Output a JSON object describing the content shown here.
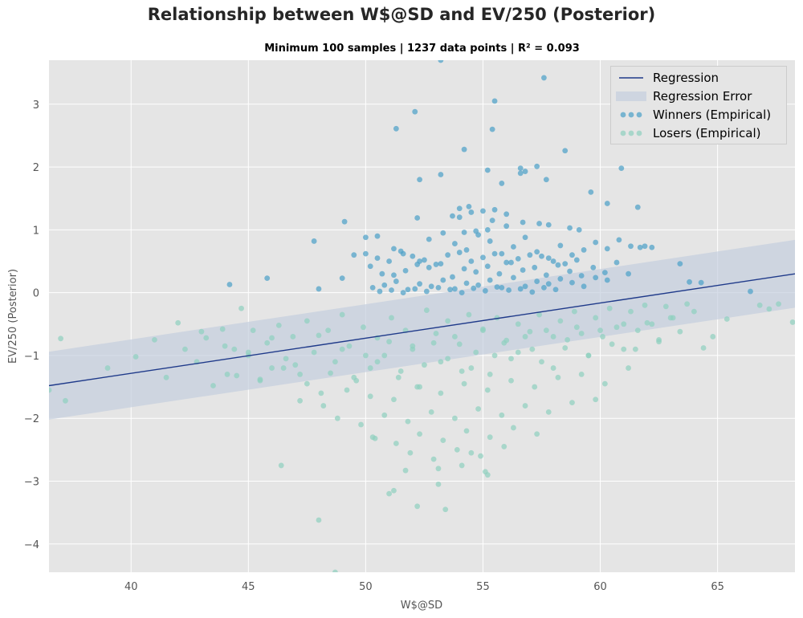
{
  "title": "Relationship between W$@SD and EV/250 (Posterior)",
  "subtitle": "Minimum 100 samples | 1237 data points | R²  =  0.093",
  "colors": {
    "background": "#e5e5e5",
    "grid": "#ffffff",
    "regression": "#1f3a8a",
    "band": "#c4cede",
    "winners": "#4a9fc7",
    "losers": "#8fd0bf"
  },
  "chart_data": {
    "type": "scatter",
    "xlabel": "W$@SD",
    "ylabel": "EV/250 (Posterior)",
    "xlim": [
      36.5,
      68.3
    ],
    "ylim": [
      -4.45,
      3.7
    ],
    "xticks": [
      40,
      45,
      50,
      55,
      60,
      65
    ],
    "yticks": [
      -4,
      -3,
      -2,
      -1,
      0,
      1,
      2,
      3
    ],
    "grid": true,
    "legend_position": "top-right",
    "legend": [
      "Regression",
      "Regression Error",
      "Winners (Empirical)",
      "Losers (Empirical)"
    ],
    "regression": {
      "x": [
        36.5,
        68.3
      ],
      "y": [
        -1.48,
        0.3
      ]
    },
    "regression_error": {
      "x": [
        36.5,
        68.3
      ],
      "lower": [
        -2.02,
        -0.24
      ],
      "upper": [
        -0.94,
        0.84
      ]
    },
    "series": [
      {
        "name": "Winners (Empirical)",
        "x": [
          53.2,
          57.6,
          55.5,
          52.1,
          51.3,
          55.4,
          58.5,
          54.2,
          57.3,
          56.6,
          56.8,
          55.2,
          52.3,
          53.2,
          59.6,
          57.7,
          56.6,
          55.8,
          60.9,
          54.4,
          49.1,
          52.2,
          53.7,
          54.0,
          55.4,
          56.0,
          56.7,
          57.4,
          57.8,
          58.7,
          59.1,
          60.3,
          61.6,
          62.2,
          47.8,
          50.0,
          50.5,
          51.2,
          51.6,
          52.3,
          52.7,
          53.3,
          53.8,
          54.3,
          54.8,
          55.3,
          55.8,
          56.3,
          56.8,
          57.3,
          57.8,
          58.3,
          58.8,
          59.3,
          59.8,
          60.3,
          60.8,
          61.3,
          50.2,
          50.7,
          51.2,
          51.7,
          52.2,
          52.7,
          53.2,
          53.7,
          54.2,
          54.7,
          55.2,
          55.7,
          56.2,
          56.7,
          57.2,
          57.7,
          58.2,
          58.7,
          59.2,
          59.7,
          60.2,
          60.7,
          61.2,
          61.7,
          50.3,
          50.8,
          51.3,
          51.8,
          52.3,
          52.8,
          53.3,
          53.8,
          54.3,
          54.8,
          55.3,
          55.8,
          56.3,
          56.8,
          57.3,
          57.8,
          58.3,
          58.8,
          59.3,
          59.8,
          60.3,
          49.5,
          50.0,
          50.5,
          51.0,
          51.5,
          52.0,
          52.5,
          53.0,
          53.5,
          54.0,
          54.5,
          55.0,
          55.5,
          56.0,
          56.5,
          57.0,
          57.5,
          58.0,
          58.5,
          59.0,
          50.6,
          51.1,
          51.6,
          52.1,
          52.6,
          53.1,
          53.6,
          54.1,
          54.6,
          55.1,
          55.6,
          56.1,
          56.6,
          57.1,
          57.6,
          58.1,
          54.0,
          54.5,
          55.0,
          55.5,
          56.0,
          54.2,
          54.7,
          55.2,
          44.2,
          45.8,
          48.0,
          49.0,
          63.4,
          63.8,
          64.3,
          66.4,
          61.9
        ],
        "y": [
          3.7,
          3.42,
          3.05,
          2.88,
          2.61,
          2.6,
          2.26,
          2.28,
          2.01,
          1.98,
          1.93,
          1.95,
          1.8,
          1.88,
          1.6,
          1.8,
          1.9,
          1.74,
          1.98,
          1.37,
          1.13,
          1.19,
          1.22,
          1.2,
          1.15,
          1.06,
          1.12,
          1.1,
          1.08,
          1.03,
          1.0,
          1.42,
          1.36,
          0.72,
          0.82,
          0.88,
          0.9,
          0.7,
          0.62,
          0.5,
          0.85,
          0.95,
          0.78,
          0.68,
          0.92,
          0.82,
          0.62,
          0.73,
          0.88,
          0.65,
          0.55,
          0.75,
          0.6,
          0.68,
          0.8,
          0.7,
          0.84,
          0.74,
          0.42,
          0.3,
          0.28,
          0.35,
          0.45,
          0.4,
          0.46,
          0.25,
          0.38,
          0.33,
          0.42,
          0.3,
          0.48,
          0.36,
          0.4,
          0.28,
          0.44,
          0.34,
          0.27,
          0.4,
          0.32,
          0.48,
          0.3,
          0.72,
          0.08,
          0.12,
          0.18,
          0.05,
          0.14,
          0.1,
          0.2,
          0.06,
          0.15,
          0.12,
          0.2,
          0.08,
          0.24,
          0.1,
          0.18,
          0.14,
          0.22,
          0.16,
          0.1,
          0.24,
          0.2,
          0.6,
          0.62,
          0.55,
          0.5,
          0.66,
          0.58,
          0.52,
          0.45,
          0.6,
          0.64,
          0.5,
          0.56,
          0.62,
          0.48,
          0.54,
          0.6,
          0.58,
          0.5,
          0.46,
          0.52,
          0.02,
          0.04,
          0.0,
          0.06,
          0.02,
          0.08,
          0.05,
          0.0,
          0.07,
          0.03,
          0.09,
          0.04,
          0.06,
          0.01,
          0.08,
          0.05,
          1.34,
          1.28,
          1.3,
          1.32,
          1.25,
          0.96,
          0.98,
          1.0,
          0.13,
          0.23,
          0.06,
          0.23,
          0.46,
          0.17,
          0.16,
          0.02,
          0.74
        ]
      },
      {
        "name": "Losers (Empirical)",
        "x": [
          36.5,
          37.0,
          37.2,
          39.0,
          40.2,
          41.0,
          41.5,
          42.0,
          42.3,
          42.8,
          43.2,
          43.5,
          43.9,
          44.1,
          44.4,
          44.7,
          45.0,
          45.2,
          45.5,
          45.8,
          46.0,
          46.3,
          46.6,
          46.9,
          47.2,
          47.5,
          47.8,
          48.1,
          48.4,
          48.7,
          49.0,
          49.3,
          49.6,
          49.9,
          50.2,
          50.5,
          50.8,
          51.1,
          51.4,
          51.7,
          52.0,
          52.3,
          52.6,
          52.9,
          53.2,
          53.5,
          53.8,
          54.1,
          54.4,
          54.7,
          55.0,
          55.3,
          55.6,
          55.9,
          56.2,
          56.5,
          56.8,
          57.1,
          57.4,
          57.7,
          58.0,
          58.3,
          58.6,
          58.9,
          59.2,
          59.5,
          59.8,
          60.1,
          60.4,
          60.7,
          61.0,
          61.3,
          61.6,
          61.9,
          62.2,
          62.5,
          62.8,
          63.1,
          63.4,
          63.7,
          64.0,
          64.4,
          64.8,
          65.4,
          66.8,
          67.2,
          67.6,
          68.2,
          43.0,
          44.0,
          45.0,
          46.0,
          47.0,
          48.0,
          49.0,
          50.0,
          51.0,
          52.0,
          53.0,
          54.0,
          55.0,
          56.0,
          57.0,
          58.0,
          59.0,
          60.0,
          61.0,
          62.0,
          63.0,
          44.5,
          45.5,
          46.5,
          47.5,
          48.5,
          49.5,
          50.5,
          51.5,
          52.5,
          53.5,
          54.5,
          55.5,
          56.5,
          57.5,
          58.5,
          59.5,
          60.5,
          61.5,
          62.5,
          47.2,
          48.2,
          49.2,
          50.2,
          51.2,
          52.2,
          53.2,
          54.2,
          55.2,
          56.2,
          57.2,
          58.2,
          59.2,
          60.2,
          61.2,
          48.8,
          49.8,
          50.8,
          51.8,
          52.8,
          53.8,
          54.8,
          55.8,
          56.8,
          57.8,
          58.8,
          59.8,
          50.3,
          51.3,
          52.3,
          53.3,
          54.3,
          55.3,
          56.3,
          57.3,
          51.9,
          52.9,
          53.9,
          54.9,
          55.9,
          53.1,
          54.1,
          55.1,
          51.0,
          52.2,
          53.1,
          53.4,
          46.4,
          48.0,
          48.7,
          51.7,
          54.5,
          55.2,
          50.4,
          51.2
        ],
        "y": [
          -1.55,
          -0.73,
          -1.72,
          -1.2,
          -1.02,
          -0.75,
          -1.35,
          -0.48,
          -0.9,
          -1.1,
          -0.72,
          -1.48,
          -0.58,
          -1.3,
          -0.9,
          -0.25,
          -1.0,
          -0.6,
          -1.4,
          -0.8,
          -1.2,
          -0.52,
          -1.05,
          -0.7,
          -1.3,
          -0.45,
          -0.95,
          -1.6,
          -0.6,
          -1.1,
          -0.35,
          -0.85,
          -1.4,
          -0.55,
          -1.2,
          -0.72,
          -1.0,
          -0.4,
          -1.35,
          -0.6,
          -0.9,
          -1.5,
          -0.28,
          -0.8,
          -1.1,
          -0.45,
          -0.7,
          -1.25,
          -0.35,
          -0.95,
          -0.6,
          -1.3,
          -0.4,
          -0.8,
          -1.05,
          -0.5,
          -0.7,
          -0.9,
          -0.35,
          -0.6,
          -1.2,
          -0.45,
          -0.75,
          -0.3,
          -0.65,
          -1.0,
          -0.4,
          -0.7,
          -0.25,
          -0.55,
          -0.9,
          -0.3,
          -0.6,
          -0.2,
          -0.5,
          -0.75,
          -0.22,
          -0.4,
          -0.62,
          -0.18,
          -0.3,
          -0.88,
          -0.7,
          -0.42,
          -0.2,
          -0.26,
          -0.18,
          -0.47,
          -0.62,
          -0.85,
          -0.95,
          -0.72,
          -1.15,
          -0.68,
          -0.9,
          -1.0,
          -0.78,
          -0.85,
          -0.65,
          -0.82,
          -0.58,
          -0.76,
          -0.62,
          -0.7,
          -0.55,
          -0.6,
          -0.5,
          -0.48,
          -0.4,
          -1.32,
          -1.38,
          -1.2,
          -1.45,
          -1.28,
          -1.35,
          -1.1,
          -1.25,
          -1.15,
          -1.05,
          -1.2,
          -1.0,
          -0.95,
          -1.1,
          -0.88,
          -1.0,
          -0.82,
          -0.9,
          -0.78,
          -1.72,
          -1.8,
          -1.55,
          -1.65,
          -1.7,
          -1.5,
          -1.6,
          -1.45,
          -1.55,
          -1.4,
          -1.5,
          -1.35,
          -1.3,
          -1.45,
          -1.2,
          -2.0,
          -2.1,
          -1.95,
          -2.05,
          -1.9,
          -2.0,
          -1.85,
          -1.95,
          -1.8,
          -1.9,
          -1.75,
          -1.7,
          -2.3,
          -2.4,
          -2.25,
          -2.35,
          -2.2,
          -2.3,
          -2.15,
          -2.25,
          -2.55,
          -2.65,
          -2.5,
          -2.6,
          -2.45,
          -2.8,
          -2.75,
          -2.85,
          -3.2,
          -3.4,
          -3.05,
          -3.45,
          -2.75,
          -3.62,
          -4.45,
          -2.83,
          -2.55,
          -2.9,
          -2.32,
          -3.15
        ]
      }
    ]
  }
}
